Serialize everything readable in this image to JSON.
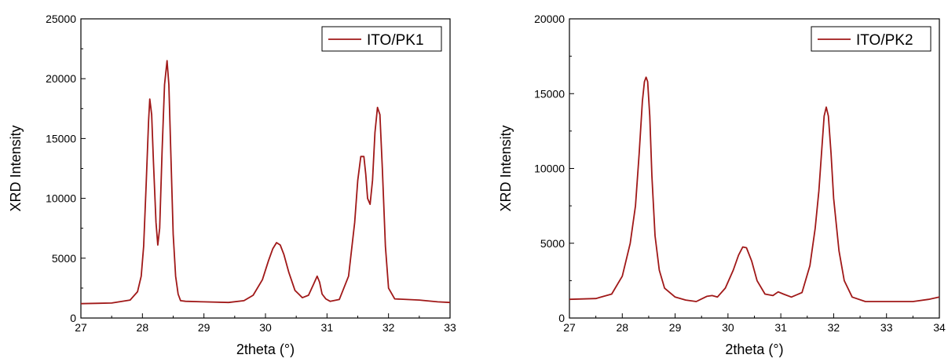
{
  "chart_data": [
    {
      "type": "line",
      "xlabel": "2theta (°)",
      "ylabel": "XRD Intensity",
      "xlim": [
        27,
        33
      ],
      "ylim": [
        0,
        25000
      ],
      "xticks": [
        27,
        28,
        29,
        30,
        31,
        32,
        33
      ],
      "yticks": [
        0,
        5000,
        10000,
        15000,
        20000,
        25000
      ],
      "grid": false,
      "legend": {
        "placement": "top-right"
      },
      "series": [
        {
          "name": "ITO/PK1",
          "color": "#a01818",
          "x": [
            27.0,
            27.5,
            27.8,
            27.92,
            27.98,
            28.02,
            28.06,
            28.1,
            28.12,
            28.15,
            28.18,
            28.22,
            28.25,
            28.28,
            28.32,
            28.36,
            28.4,
            28.43,
            28.46,
            28.5,
            28.54,
            28.58,
            28.62,
            28.7,
            29.0,
            29.4,
            29.65,
            29.8,
            29.95,
            30.05,
            30.12,
            30.18,
            30.24,
            30.3,
            30.38,
            30.48,
            30.6,
            30.7,
            30.78,
            30.84,
            30.88,
            30.92,
            30.98,
            31.05,
            31.2,
            31.35,
            31.45,
            31.5,
            31.55,
            31.6,
            31.63,
            31.66,
            31.7,
            31.74,
            31.78,
            31.82,
            31.86,
            31.9,
            31.95,
            32.0,
            32.1,
            32.5,
            32.8,
            33.0
          ],
          "y": [
            1200,
            1250,
            1500,
            2200,
            3500,
            6000,
            11000,
            16500,
            18300,
            17000,
            13000,
            8000,
            6100,
            7500,
            14000,
            19500,
            21500,
            19500,
            14000,
            7000,
            3500,
            2000,
            1450,
            1400,
            1350,
            1300,
            1450,
            1900,
            3200,
            4800,
            5800,
            6300,
            6100,
            5300,
            3800,
            2300,
            1700,
            1900,
            2800,
            3500,
            3000,
            2000,
            1600,
            1400,
            1550,
            3500,
            8000,
            11500,
            13500,
            13500,
            12000,
            10000,
            9500,
            11500,
            15500,
            17600,
            17000,
            12500,
            6000,
            2500,
            1600,
            1500,
            1350,
            1300
          ]
        }
      ]
    },
    {
      "type": "line",
      "xlabel": "2theta (°)",
      "ylabel": "XRD Intensity",
      "xlim": [
        27,
        34
      ],
      "ylim": [
        0,
        20000
      ],
      "xticks": [
        27,
        28,
        29,
        30,
        31,
        32,
        33,
        34
      ],
      "yticks": [
        0,
        5000,
        10000,
        15000,
        20000
      ],
      "grid": false,
      "legend": {
        "placement": "top-right"
      },
      "series": [
        {
          "name": "ITO/PK2",
          "color": "#a01818",
          "x": [
            27.0,
            27.5,
            27.8,
            28.0,
            28.15,
            28.25,
            28.32,
            28.38,
            28.42,
            28.45,
            28.48,
            28.52,
            28.56,
            28.62,
            28.7,
            28.8,
            29.0,
            29.2,
            29.4,
            29.6,
            29.7,
            29.8,
            29.95,
            30.1,
            30.2,
            30.28,
            30.35,
            30.45,
            30.55,
            30.7,
            30.85,
            30.95,
            31.05,
            31.2,
            31.4,
            31.55,
            31.65,
            31.72,
            31.78,
            31.82,
            31.86,
            31.9,
            31.95,
            32.0,
            32.1,
            32.2,
            32.35,
            32.6,
            33.0,
            33.5,
            33.8,
            34.0
          ],
          "y": [
            1250,
            1300,
            1600,
            2800,
            5000,
            7500,
            11000,
            14500,
            15800,
            16100,
            15800,
            13500,
            9500,
            5500,
            3200,
            2000,
            1400,
            1200,
            1100,
            1450,
            1500,
            1400,
            2000,
            3200,
            4200,
            4750,
            4700,
            3800,
            2500,
            1600,
            1500,
            1750,
            1600,
            1400,
            1700,
            3500,
            6000,
            8500,
            11500,
            13500,
            14100,
            13500,
            11000,
            8000,
            4500,
            2500,
            1400,
            1100,
            1100,
            1100,
            1250,
            1400
          ]
        }
      ]
    }
  ]
}
